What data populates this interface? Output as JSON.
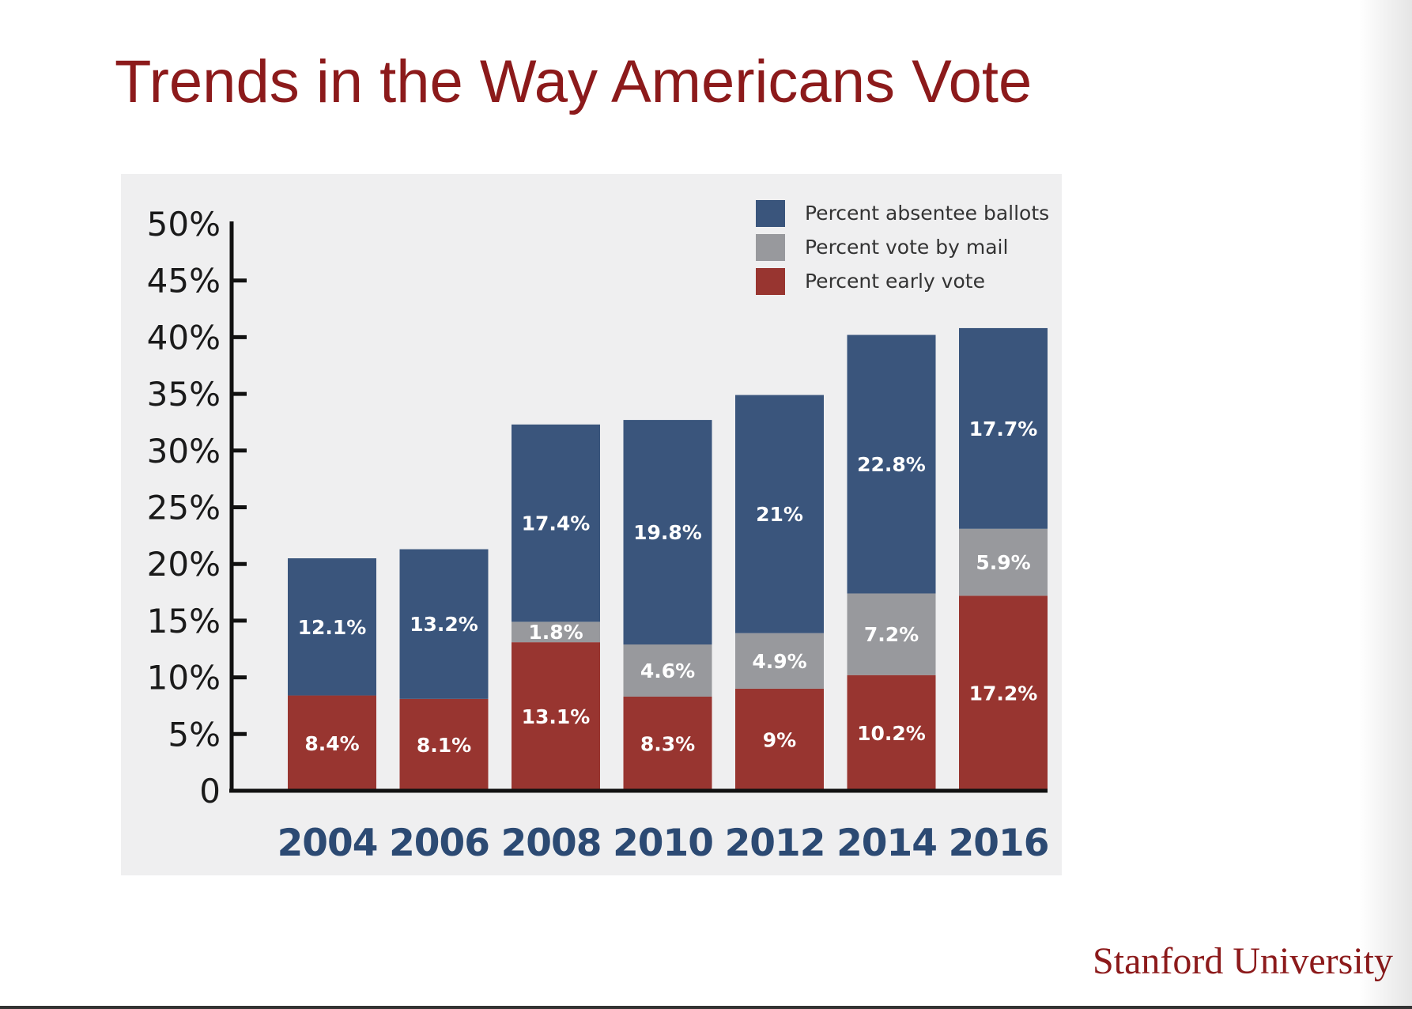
{
  "slide": {
    "title": "Trends in the Way Americans Vote",
    "brand": "Stanford University"
  },
  "chart_data": {
    "type": "bar",
    "stacked": true,
    "categories": [
      "2004",
      "2006",
      "2008",
      "2010",
      "2012",
      "2014",
      "2016"
    ],
    "series": [
      {
        "name": "Percent early vote",
        "color": "#983530",
        "values": [
          8.4,
          8.1,
          13.1,
          8.3,
          9,
          10.2,
          17.2
        ],
        "labels": [
          "8.4%",
          "8.1%",
          "13.1%",
          "8.3%",
          "9%",
          "10.2%",
          "17.2%"
        ]
      },
      {
        "name": "Percent vote by mail",
        "color": "#98999d",
        "values": [
          0,
          0,
          1.8,
          4.6,
          4.9,
          7.2,
          5.9
        ],
        "labels": [
          "",
          "",
          "1.8%",
          "4.6%",
          "4.9%",
          "7.2%",
          "5.9%"
        ]
      },
      {
        "name": "Percent absentee ballots",
        "color": "#3a557c",
        "values": [
          12.1,
          13.2,
          17.4,
          19.8,
          21,
          22.8,
          17.7
        ],
        "labels": [
          "12.1%",
          "13.2%",
          "17.4%",
          "19.8%",
          "21%",
          "22.8%",
          "17.7%"
        ]
      }
    ],
    "legend_order": [
      "Percent absentee ballots",
      "Percent vote by mail",
      "Percent early vote"
    ],
    "yticks": [
      "0",
      "5%",
      "10%",
      "15%",
      "20%",
      "25%",
      "30%",
      "35%",
      "40%",
      "45%",
      "50%"
    ],
    "ylim": [
      0,
      50
    ],
    "xlabel": "",
    "ylabel": "",
    "legend_position": "top-right",
    "grid": false,
    "category_label_color": "#2c4a73",
    "axis_color": "#111111",
    "background": "#efeff0"
  }
}
